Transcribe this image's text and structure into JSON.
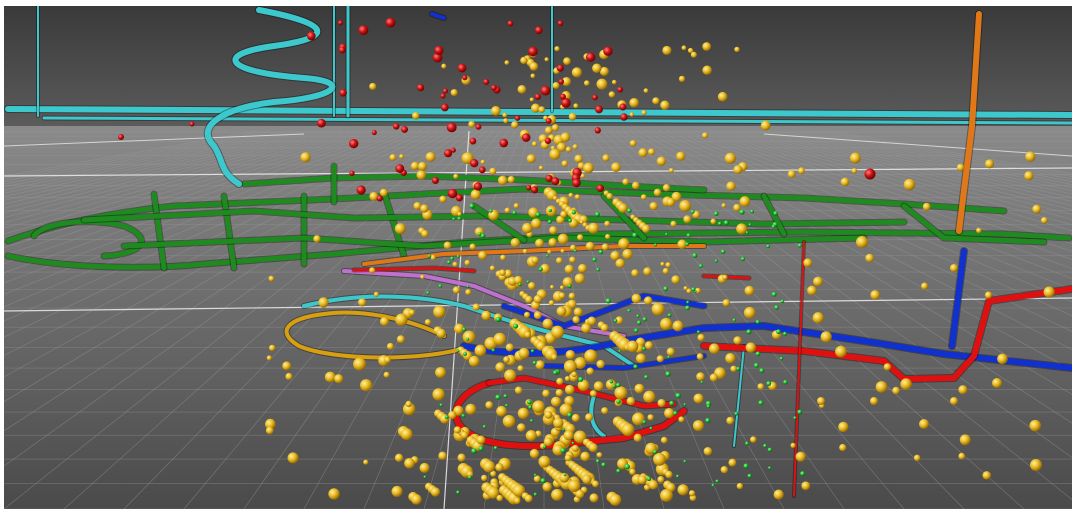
{
  "scene": {
    "description_free": true,
    "colors": {
      "sky_top": "#3a3a3a",
      "sky_bottom": "#5e5e5e",
      "floor_near": "#4a4a4a",
      "floor_far": "#8a8a8a",
      "grid": "#9a9a9a",
      "grid_major": "#e8e8e8",
      "tunnel_green": "#1f8a1f",
      "tunnel_cyan": "#3cc8cc",
      "tunnel_blue": "#1030d0",
      "tunnel_red": "#e01010",
      "tunnel_orange": "#e07818",
      "tunnel_gold": "#d8a010",
      "tunnel_violet": "#c070d0",
      "event_gold": "#e8b820",
      "event_red": "#c81010",
      "event_green": "#20c030"
    },
    "legend_shown": false,
    "axes_shown": false
  }
}
